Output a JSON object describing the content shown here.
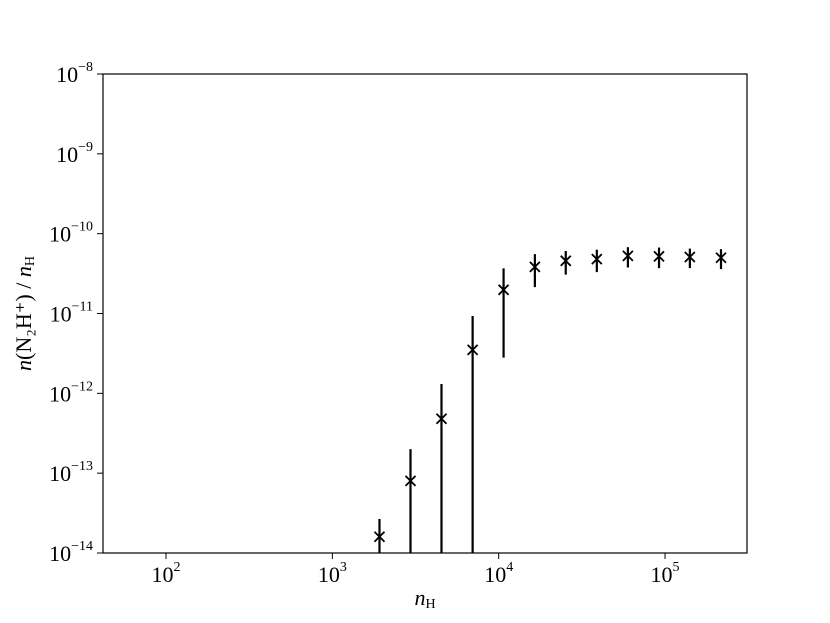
{
  "chart_data": {
    "type": "scatter",
    "x_label": "nH",
    "y_label": "n(N₂H⁺) / nH",
    "x_scale": "log",
    "y_scale": "log",
    "color": "#000000",
    "marker": "x",
    "x": [
      1920,
      2950,
      4530,
      6970,
      10700,
      16500,
      25300,
      38900,
      59800,
      92000,
      141000,
      217000
    ],
    "values": [
      1.6e-14,
      8e-14,
      4.8e-13,
      3.5e-12,
      1.98e-11,
      3.84e-11,
      4.57e-11,
      4.8e-11,
      5.27e-11,
      5.2e-11,
      5.1e-11,
      5e-11
    ],
    "errors": [
      1.07e-14,
      1.2e-13,
      8.3e-13,
      5.8e-12,
      1.7e-11,
      1.7e-11,
      1.5e-11,
      1.5e-11,
      1.5e-11,
      1.5e-11,
      1.4e-11,
      1.4e-11
    ],
    "xlim": [
      41.8,
      311000
    ],
    "ylim": [
      1e-14,
      1e-08
    ],
    "xticks": [
      {
        "value": 100,
        "label": "102"
      },
      {
        "value": 1000,
        "label": "103"
      },
      {
        "value": 10000,
        "label": "104"
      },
      {
        "value": 100000,
        "label": "105"
      }
    ],
    "yticks": [
      {
        "value": 1e-14,
        "label": "10−14"
      },
      {
        "value": 1e-13,
        "label": "10−13"
      },
      {
        "value": 1e-12,
        "label": "10−12"
      },
      {
        "value": 1e-11,
        "label": "10−11"
      },
      {
        "value": 1e-10,
        "label": "10−10"
      },
      {
        "value": 1e-09,
        "label": "10−9"
      },
      {
        "value": 1e-08,
        "label": "10−8"
      }
    ]
  }
}
